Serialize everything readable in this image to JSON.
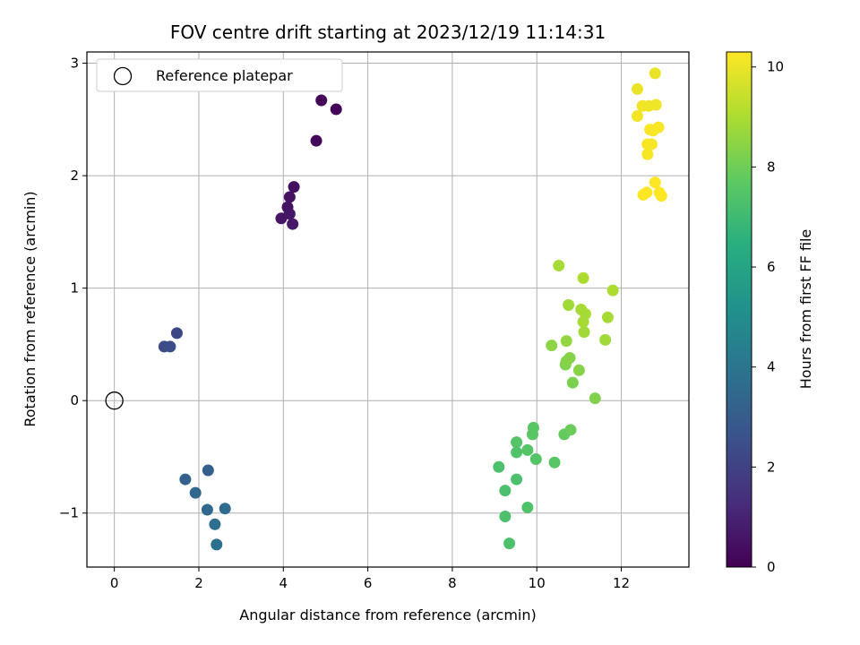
{
  "chart_data": {
    "type": "scatter",
    "title": "FOV centre drift starting at 2023/12/19 11:14:31",
    "xlabel": "Angular distance from reference (arcmin)",
    "ylabel": "Rotation from reference (arcmin)",
    "xlim": [
      -0.65,
      13.6
    ],
    "ylim": [
      -1.48,
      3.1
    ],
    "xticks": [
      0,
      2,
      4,
      6,
      8,
      10,
      12
    ],
    "yticks": [
      -1,
      0,
      1,
      2,
      3
    ],
    "grid": true,
    "legend": {
      "entries": [
        "Reference platepar"
      ],
      "placement": "top-left"
    },
    "reference_point": {
      "x": 0,
      "y": 0
    },
    "colorbar": {
      "label": "Hours from first FF file",
      "colormap": "viridis",
      "range": [
        0,
        10.3
      ],
      "ticks": [
        0,
        2,
        4,
        6,
        8,
        10
      ]
    },
    "points": [
      {
        "x": 4.9,
        "y": 2.67,
        "h": 0.1
      },
      {
        "x": 5.25,
        "y": 2.59,
        "h": 0.1
      },
      {
        "x": 4.78,
        "y": 2.31,
        "h": 0.2
      },
      {
        "x": 4.25,
        "y": 1.9,
        "h": 0.4
      },
      {
        "x": 4.15,
        "y": 1.81,
        "h": 0.5
      },
      {
        "x": 4.1,
        "y": 1.72,
        "h": 0.5
      },
      {
        "x": 4.15,
        "y": 1.66,
        "h": 0.6
      },
      {
        "x": 3.95,
        "y": 1.62,
        "h": 0.6
      },
      {
        "x": 4.22,
        "y": 1.57,
        "h": 0.7
      },
      {
        "x": 1.48,
        "y": 0.6,
        "h": 2.2
      },
      {
        "x": 1.18,
        "y": 0.48,
        "h": 2.3
      },
      {
        "x": 1.32,
        "y": 0.48,
        "h": 2.4
      },
      {
        "x": 2.22,
        "y": -0.62,
        "h": 3.1
      },
      {
        "x": 1.68,
        "y": -0.7,
        "h": 3.2
      },
      {
        "x": 1.92,
        "y": -0.82,
        "h": 3.4
      },
      {
        "x": 2.2,
        "y": -0.97,
        "h": 3.5
      },
      {
        "x": 2.62,
        "y": -0.96,
        "h": 3.6
      },
      {
        "x": 2.38,
        "y": -1.1,
        "h": 3.7
      },
      {
        "x": 2.42,
        "y": -1.28,
        "h": 3.8
      },
      {
        "x": 9.92,
        "y": -0.24,
        "h": 7.6
      },
      {
        "x": 9.9,
        "y": -0.3,
        "h": 7.6
      },
      {
        "x": 9.52,
        "y": -0.37,
        "h": 7.5
      },
      {
        "x": 9.78,
        "y": -0.44,
        "h": 7.5
      },
      {
        "x": 9.52,
        "y": -0.46,
        "h": 7.4
      },
      {
        "x": 9.98,
        "y": -0.52,
        "h": 7.5
      },
      {
        "x": 10.42,
        "y": -0.55,
        "h": 7.6
      },
      {
        "x": 9.1,
        "y": -0.59,
        "h": 7.3
      },
      {
        "x": 9.52,
        "y": -0.7,
        "h": 7.3
      },
      {
        "x": 9.25,
        "y": -0.8,
        "h": 7.3
      },
      {
        "x": 9.78,
        "y": -0.95,
        "h": 7.4
      },
      {
        "x": 9.25,
        "y": -1.03,
        "h": 7.3
      },
      {
        "x": 9.35,
        "y": -1.27,
        "h": 7.3
      },
      {
        "x": 10.65,
        "y": -0.3,
        "h": 7.8
      },
      {
        "x": 10.8,
        "y": -0.26,
        "h": 7.9
      },
      {
        "x": 11.38,
        "y": 0.02,
        "h": 8.3
      },
      {
        "x": 10.85,
        "y": 0.16,
        "h": 8.2
      },
      {
        "x": 11.0,
        "y": 0.27,
        "h": 8.4
      },
      {
        "x": 10.68,
        "y": 0.32,
        "h": 8.3
      },
      {
        "x": 10.7,
        "y": 0.35,
        "h": 8.4
      },
      {
        "x": 10.78,
        "y": 0.38,
        "h": 8.4
      },
      {
        "x": 10.35,
        "y": 0.49,
        "h": 8.5
      },
      {
        "x": 10.7,
        "y": 0.53,
        "h": 8.6
      },
      {
        "x": 11.62,
        "y": 0.54,
        "h": 8.8
      },
      {
        "x": 11.12,
        "y": 0.61,
        "h": 8.8
      },
      {
        "x": 11.1,
        "y": 0.7,
        "h": 8.9
      },
      {
        "x": 11.68,
        "y": 0.74,
        "h": 8.9
      },
      {
        "x": 11.15,
        "y": 0.77,
        "h": 8.9
      },
      {
        "x": 11.05,
        "y": 0.81,
        "h": 8.9
      },
      {
        "x": 10.75,
        "y": 0.85,
        "h": 8.8
      },
      {
        "x": 11.8,
        "y": 0.98,
        "h": 9.0
      },
      {
        "x": 11.1,
        "y": 1.09,
        "h": 9.0
      },
      {
        "x": 10.52,
        "y": 1.2,
        "h": 8.9
      },
      {
        "x": 12.8,
        "y": 2.91,
        "h": 10.0
      },
      {
        "x": 12.38,
        "y": 2.77,
        "h": 10.0
      },
      {
        "x": 12.5,
        "y": 2.62,
        "h": 10.1
      },
      {
        "x": 12.65,
        "y": 2.62,
        "h": 10.1
      },
      {
        "x": 12.82,
        "y": 2.63,
        "h": 10.1
      },
      {
        "x": 12.38,
        "y": 2.53,
        "h": 10.1
      },
      {
        "x": 12.88,
        "y": 2.43,
        "h": 10.2
      },
      {
        "x": 12.68,
        "y": 2.41,
        "h": 10.2
      },
      {
        "x": 12.75,
        "y": 2.4,
        "h": 10.2
      },
      {
        "x": 12.62,
        "y": 2.28,
        "h": 10.2
      },
      {
        "x": 12.72,
        "y": 2.28,
        "h": 10.2
      },
      {
        "x": 12.62,
        "y": 2.19,
        "h": 10.2
      },
      {
        "x": 12.8,
        "y": 1.94,
        "h": 10.3
      },
      {
        "x": 12.6,
        "y": 1.85,
        "h": 10.3
      },
      {
        "x": 12.52,
        "y": 1.83,
        "h": 10.3
      },
      {
        "x": 12.9,
        "y": 1.85,
        "h": 10.3
      },
      {
        "x": 12.95,
        "y": 1.82,
        "h": 10.3
      }
    ]
  }
}
